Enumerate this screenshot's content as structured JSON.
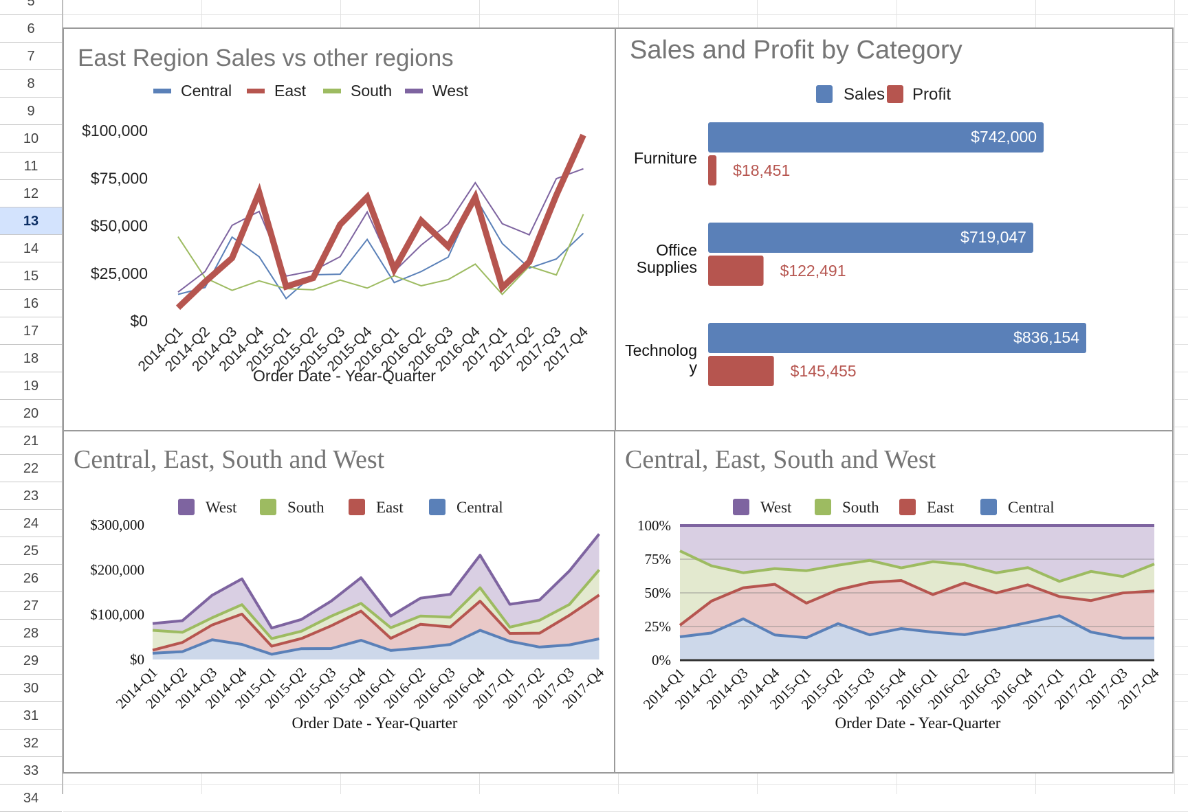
{
  "sheet": {
    "rows": [
      "5",
      "6",
      "7",
      "8",
      "9",
      "10",
      "11",
      "12",
      "13",
      "14",
      "15",
      "16",
      "17",
      "18",
      "19",
      "20",
      "21",
      "22",
      "23",
      "24",
      "25",
      "26",
      "27",
      "28",
      "29",
      "30",
      "31",
      "32",
      "33",
      "34"
    ],
    "selected_row": "13"
  },
  "colors": {
    "central": "#5a80b8",
    "east": "#b6554f",
    "south": "#9dbb61",
    "west": "#7e64a0",
    "sales": "#5a80b8",
    "profit": "#b6554f",
    "title": "#757575"
  },
  "chart_data": [
    {
      "id": "east-vs-others",
      "type": "line",
      "title": "East Region Sales vs other regions",
      "xlabel": "Order Date - Year-Quarter",
      "ylabel": "",
      "ylim": [
        0,
        100000
      ],
      "yticks": [
        "$0",
        "$25,000",
        "$50,000",
        "$75,000",
        "$100,000"
      ],
      "ytick_values": [
        0,
        25000,
        50000,
        75000,
        100000
      ],
      "grid": false,
      "legend": "top",
      "categories": [
        "2014-Q1",
        "2014-Q2",
        "2014-Q3",
        "2014-Q4",
        "2015-Q1",
        "2015-Q2",
        "2015-Q3",
        "2015-Q4",
        "2016-Q1",
        "2016-Q2",
        "2016-Q3",
        "2016-Q4",
        "2017-Q1",
        "2017-Q2",
        "2017-Q3",
        "2017-Q4"
      ],
      "series": [
        {
          "name": "Central",
          "values": [
            13900,
            17500,
            44000,
            33700,
            11700,
            24200,
            24500,
            42800,
            20100,
            25900,
            33500,
            65000,
            40600,
            27700,
            32500,
            46000
          ]
        },
        {
          "name": "East",
          "values": [
            6900,
            20500,
            33000,
            67500,
            18000,
            22500,
            50600,
            65000,
            27000,
            52600,
            39000,
            65000,
            17500,
            31000,
            66000,
            97600
          ]
        },
        {
          "name": "South",
          "values": [
            44200,
            22600,
            16000,
            21000,
            16900,
            16300,
            21400,
            17200,
            23700,
            18400,
            21700,
            29800,
            13900,
            28700,
            24100,
            56000
          ]
        },
        {
          "name": "West",
          "values": [
            15100,
            25900,
            50200,
            57500,
            23500,
            26300,
            33700,
            57200,
            25900,
            39800,
            51000,
            72600,
            51000,
            45200,
            74700,
            79900
          ]
        }
      ]
    },
    {
      "id": "sales-profit-category",
      "type": "bar",
      "orientation": "horizontal",
      "title": "Sales and Profit by Category",
      "legend": "top",
      "categories": [
        "Furniture",
        "Office Supplies",
        "Technology"
      ],
      "category_label_lines": [
        [
          "Furniture"
        ],
        [
          "Office",
          "Supplies"
        ],
        [
          "Technolog",
          "y"
        ]
      ],
      "series": [
        {
          "name": "Sales",
          "values": [
            742000,
            719047,
            836154
          ],
          "labels": [
            "$742,000",
            "$719,047",
            "$836,154"
          ]
        },
        {
          "name": "Profit",
          "values": [
            18451,
            122491,
            145455
          ],
          "labels": [
            "$18,451",
            "$122,491",
            "$145,455"
          ]
        }
      ],
      "xlim": [
        0,
        900000
      ]
    },
    {
      "id": "stacked-area",
      "type": "area",
      "stacking": "normal",
      "title": "Central, East, South and West",
      "xlabel": "Order Date - Year-Quarter",
      "ylim": [
        0,
        300000
      ],
      "yticks": [
        "$0",
        "$100,000",
        "$200,000",
        "$300,000"
      ],
      "ytick_values": [
        0,
        100000,
        200000,
        300000
      ],
      "legend": "top",
      "legend_order": [
        "West",
        "South",
        "East",
        "Central"
      ],
      "categories": [
        "2014-Q1",
        "2014-Q2",
        "2014-Q3",
        "2014-Q4",
        "2015-Q1",
        "2015-Q2",
        "2015-Q3",
        "2015-Q4",
        "2016-Q1",
        "2016-Q2",
        "2016-Q3",
        "2016-Q4",
        "2017-Q1",
        "2017-Q2",
        "2017-Q3",
        "2017-Q4"
      ],
      "series_ref": "east-vs-others"
    },
    {
      "id": "percent-area",
      "type": "area",
      "stacking": "percent",
      "title": "Central, East, South and West",
      "xlabel": "Order Date - Year-Quarter",
      "ylim": [
        0,
        100
      ],
      "yticks": [
        "0%",
        "25%",
        "50%",
        "75%",
        "100%"
      ],
      "ytick_values": [
        0,
        25,
        50,
        75,
        100
      ],
      "grid": true,
      "legend": "top",
      "legend_order": [
        "West",
        "South",
        "East",
        "Central"
      ],
      "categories": [
        "2014-Q1",
        "2014-Q2",
        "2014-Q3",
        "2014-Q4",
        "2015-Q1",
        "2015-Q2",
        "2015-Q3",
        "2015-Q4",
        "2016-Q1",
        "2016-Q2",
        "2016-Q3",
        "2016-Q4",
        "2017-Q1",
        "2017-Q2",
        "2017-Q3",
        "2017-Q4"
      ],
      "series_ref": "east-vs-others"
    }
  ]
}
